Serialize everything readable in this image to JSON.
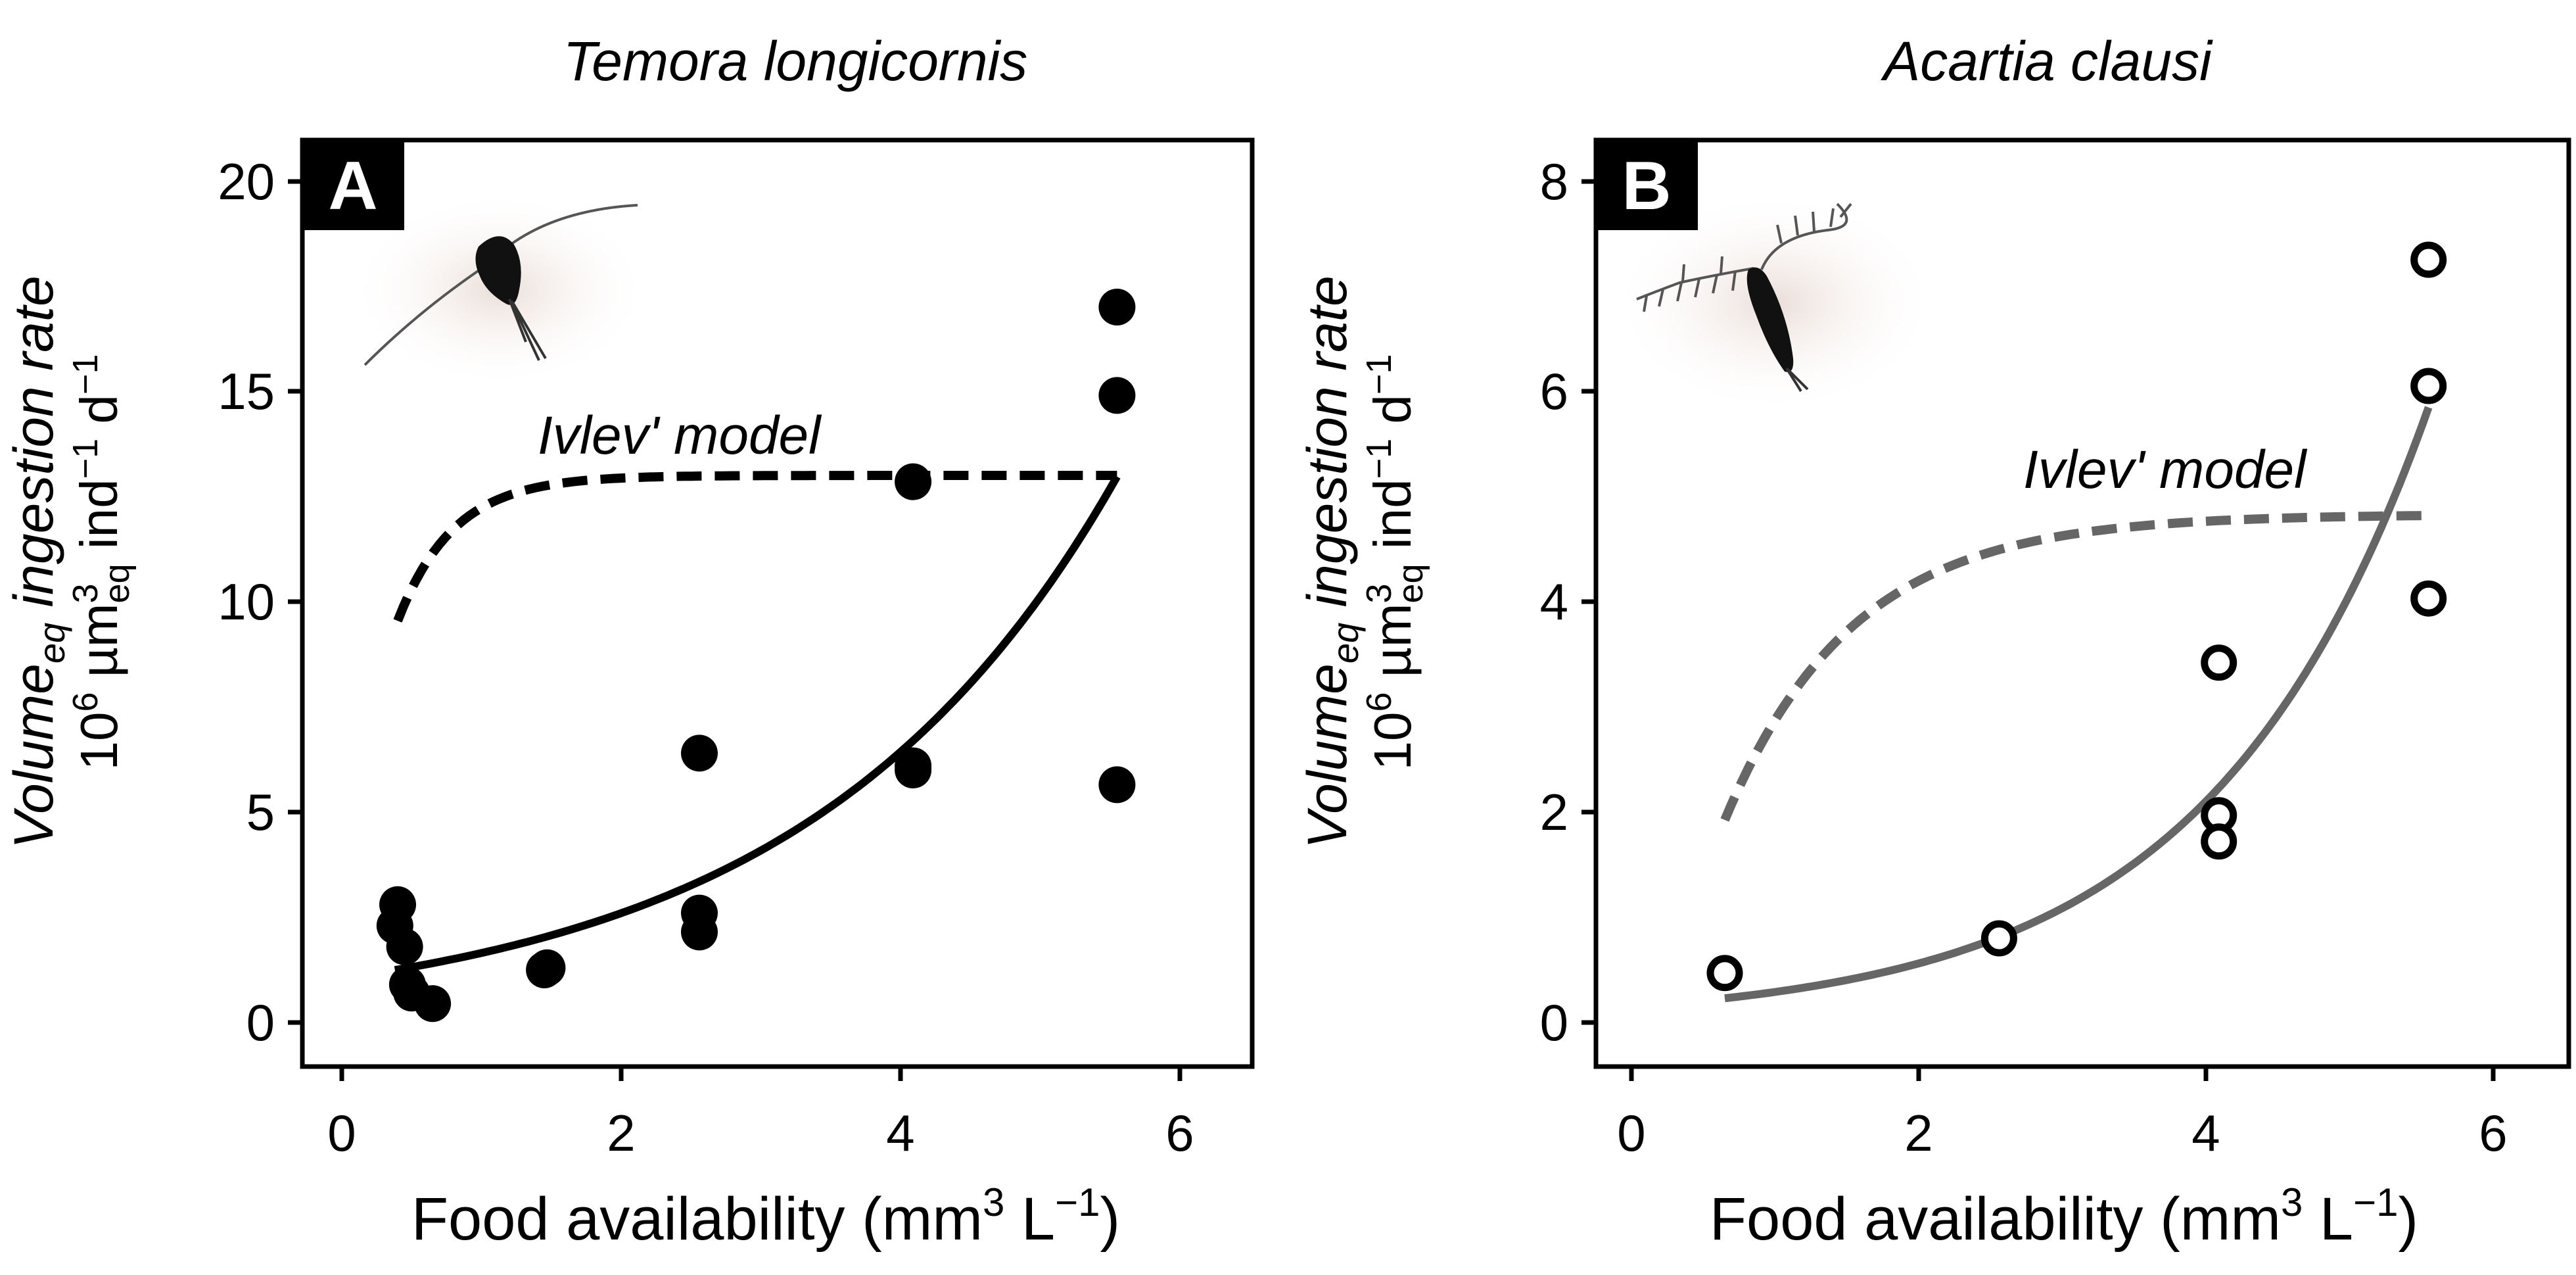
{
  "chart_data": [
    {
      "panel": "A",
      "type": "scatter",
      "title": "Temora longicornis",
      "xlabel": {
        "main": "Food availability (mm",
        "sup1": "3",
        "mid": " L",
        "sup2": "−1",
        "end": ")"
      },
      "ylabel": {
        "line1": {
          "main": "Volume",
          "sub": "eq",
          "rest": " ingestion rate"
        },
        "line2": {
          "pre": "10",
          "sup1": "6",
          "mid1": " µm",
          "sup2": "3",
          "sub": "eq",
          "mid2": " ind",
          "sup3": "−1",
          "mid3": " d",
          "sup4": "−1"
        }
      },
      "xlim": [
        -0.25,
        6.3
      ],
      "ylim": [
        -1.0,
        20.8
      ],
      "xticks": [
        0,
        2,
        4,
        6
      ],
      "yticks": [
        0,
        5,
        10,
        15,
        20
      ],
      "xtick_labels": [
        "0",
        "2",
        "4",
        "6"
      ],
      "ytick_labels": [
        "0",
        "5",
        "10",
        "15",
        "20"
      ],
      "marker": "filled-circle",
      "points": [
        {
          "x": 0.4,
          "y": 2.8
        },
        {
          "x": 0.38,
          "y": 2.3
        },
        {
          "x": 0.45,
          "y": 1.8
        },
        {
          "x": 0.47,
          "y": 0.9
        },
        {
          "x": 0.5,
          "y": 0.7
        },
        {
          "x": 0.65,
          "y": 0.45
        },
        {
          "x": 1.45,
          "y": 1.25
        },
        {
          "x": 1.47,
          "y": 1.3
        },
        {
          "x": 2.56,
          "y": 6.4
        },
        {
          "x": 2.56,
          "y": 2.6
        },
        {
          "x": 2.56,
          "y": 2.15
        },
        {
          "x": 4.09,
          "y": 12.85
        },
        {
          "x": 4.09,
          "y": 6.1
        },
        {
          "x": 4.09,
          "y": 6.0
        },
        {
          "x": 5.55,
          "y": 17.0
        },
        {
          "x": 5.55,
          "y": 14.9
        },
        {
          "x": 5.55,
          "y": 5.65
        }
      ],
      "fit_curve": {
        "style": "solid",
        "color": "#000000",
        "x_start": 0.38,
        "x_end": 5.55,
        "a": 1.05,
        "b": 0.453
      },
      "ivlev_model": {
        "label": "Ivlev' model",
        "style": "dashed",
        "color": "#000000",
        "x_start": 0.4,
        "x_end": 5.55,
        "ymax": 13.0,
        "k": 2.5,
        "x0": -0.13
      },
      "badge": "A",
      "illustration": "temora-copepod"
    },
    {
      "panel": "B",
      "type": "scatter",
      "title": "Acartia clausi",
      "xlabel": {
        "main": "Food availability (mm",
        "sup1": "3",
        "mid": " L",
        "sup2": "−1",
        "end": ")"
      },
      "ylabel": {
        "line1": {
          "main": "Volume",
          "sub": "eq",
          "rest": " ingestion rate"
        },
        "line2": {
          "pre": "10",
          "sup1": "6",
          "mid1": " µm",
          "sup2": "3",
          "sub": "eq",
          "mid2": " ind",
          "sup3": "−1",
          "mid3": " d",
          "sup4": "−1"
        }
      },
      "xlim": [
        -0.25,
        6.3
      ],
      "ylim": [
        -0.4,
        8.3
      ],
      "xticks": [
        0,
        2,
        4,
        6
      ],
      "yticks": [
        0,
        2,
        4,
        6,
        8
      ],
      "xtick_labels": [
        "0",
        "2",
        "4",
        "6"
      ],
      "ytick_labels": [
        "0",
        "2",
        "4",
        "6",
        "8"
      ],
      "marker": "open-circle",
      "points": [
        {
          "x": 0.65,
          "y": 0.47
        },
        {
          "x": 2.56,
          "y": 0.8
        },
        {
          "x": 4.09,
          "y": 3.42
        },
        {
          "x": 4.09,
          "y": 1.97
        },
        {
          "x": 4.09,
          "y": 1.72
        },
        {
          "x": 5.55,
          "y": 7.25
        },
        {
          "x": 5.55,
          "y": 6.05
        },
        {
          "x": 5.55,
          "y": 4.03
        }
      ],
      "fit_curve": {
        "style": "solid",
        "color": "#666666",
        "x_start": 0.65,
        "x_end": 5.55,
        "a": 0.15,
        "b": 0.66
      },
      "ivlev_model": {
        "label": "Ivlev' model",
        "style": "dashed",
        "color": "#666666",
        "x_start": 0.65,
        "x_end": 5.55,
        "ymax": 4.83,
        "k": 1.13,
        "x0": 0.2
      },
      "badge": "B",
      "illustration": "acartia-copepod"
    }
  ]
}
